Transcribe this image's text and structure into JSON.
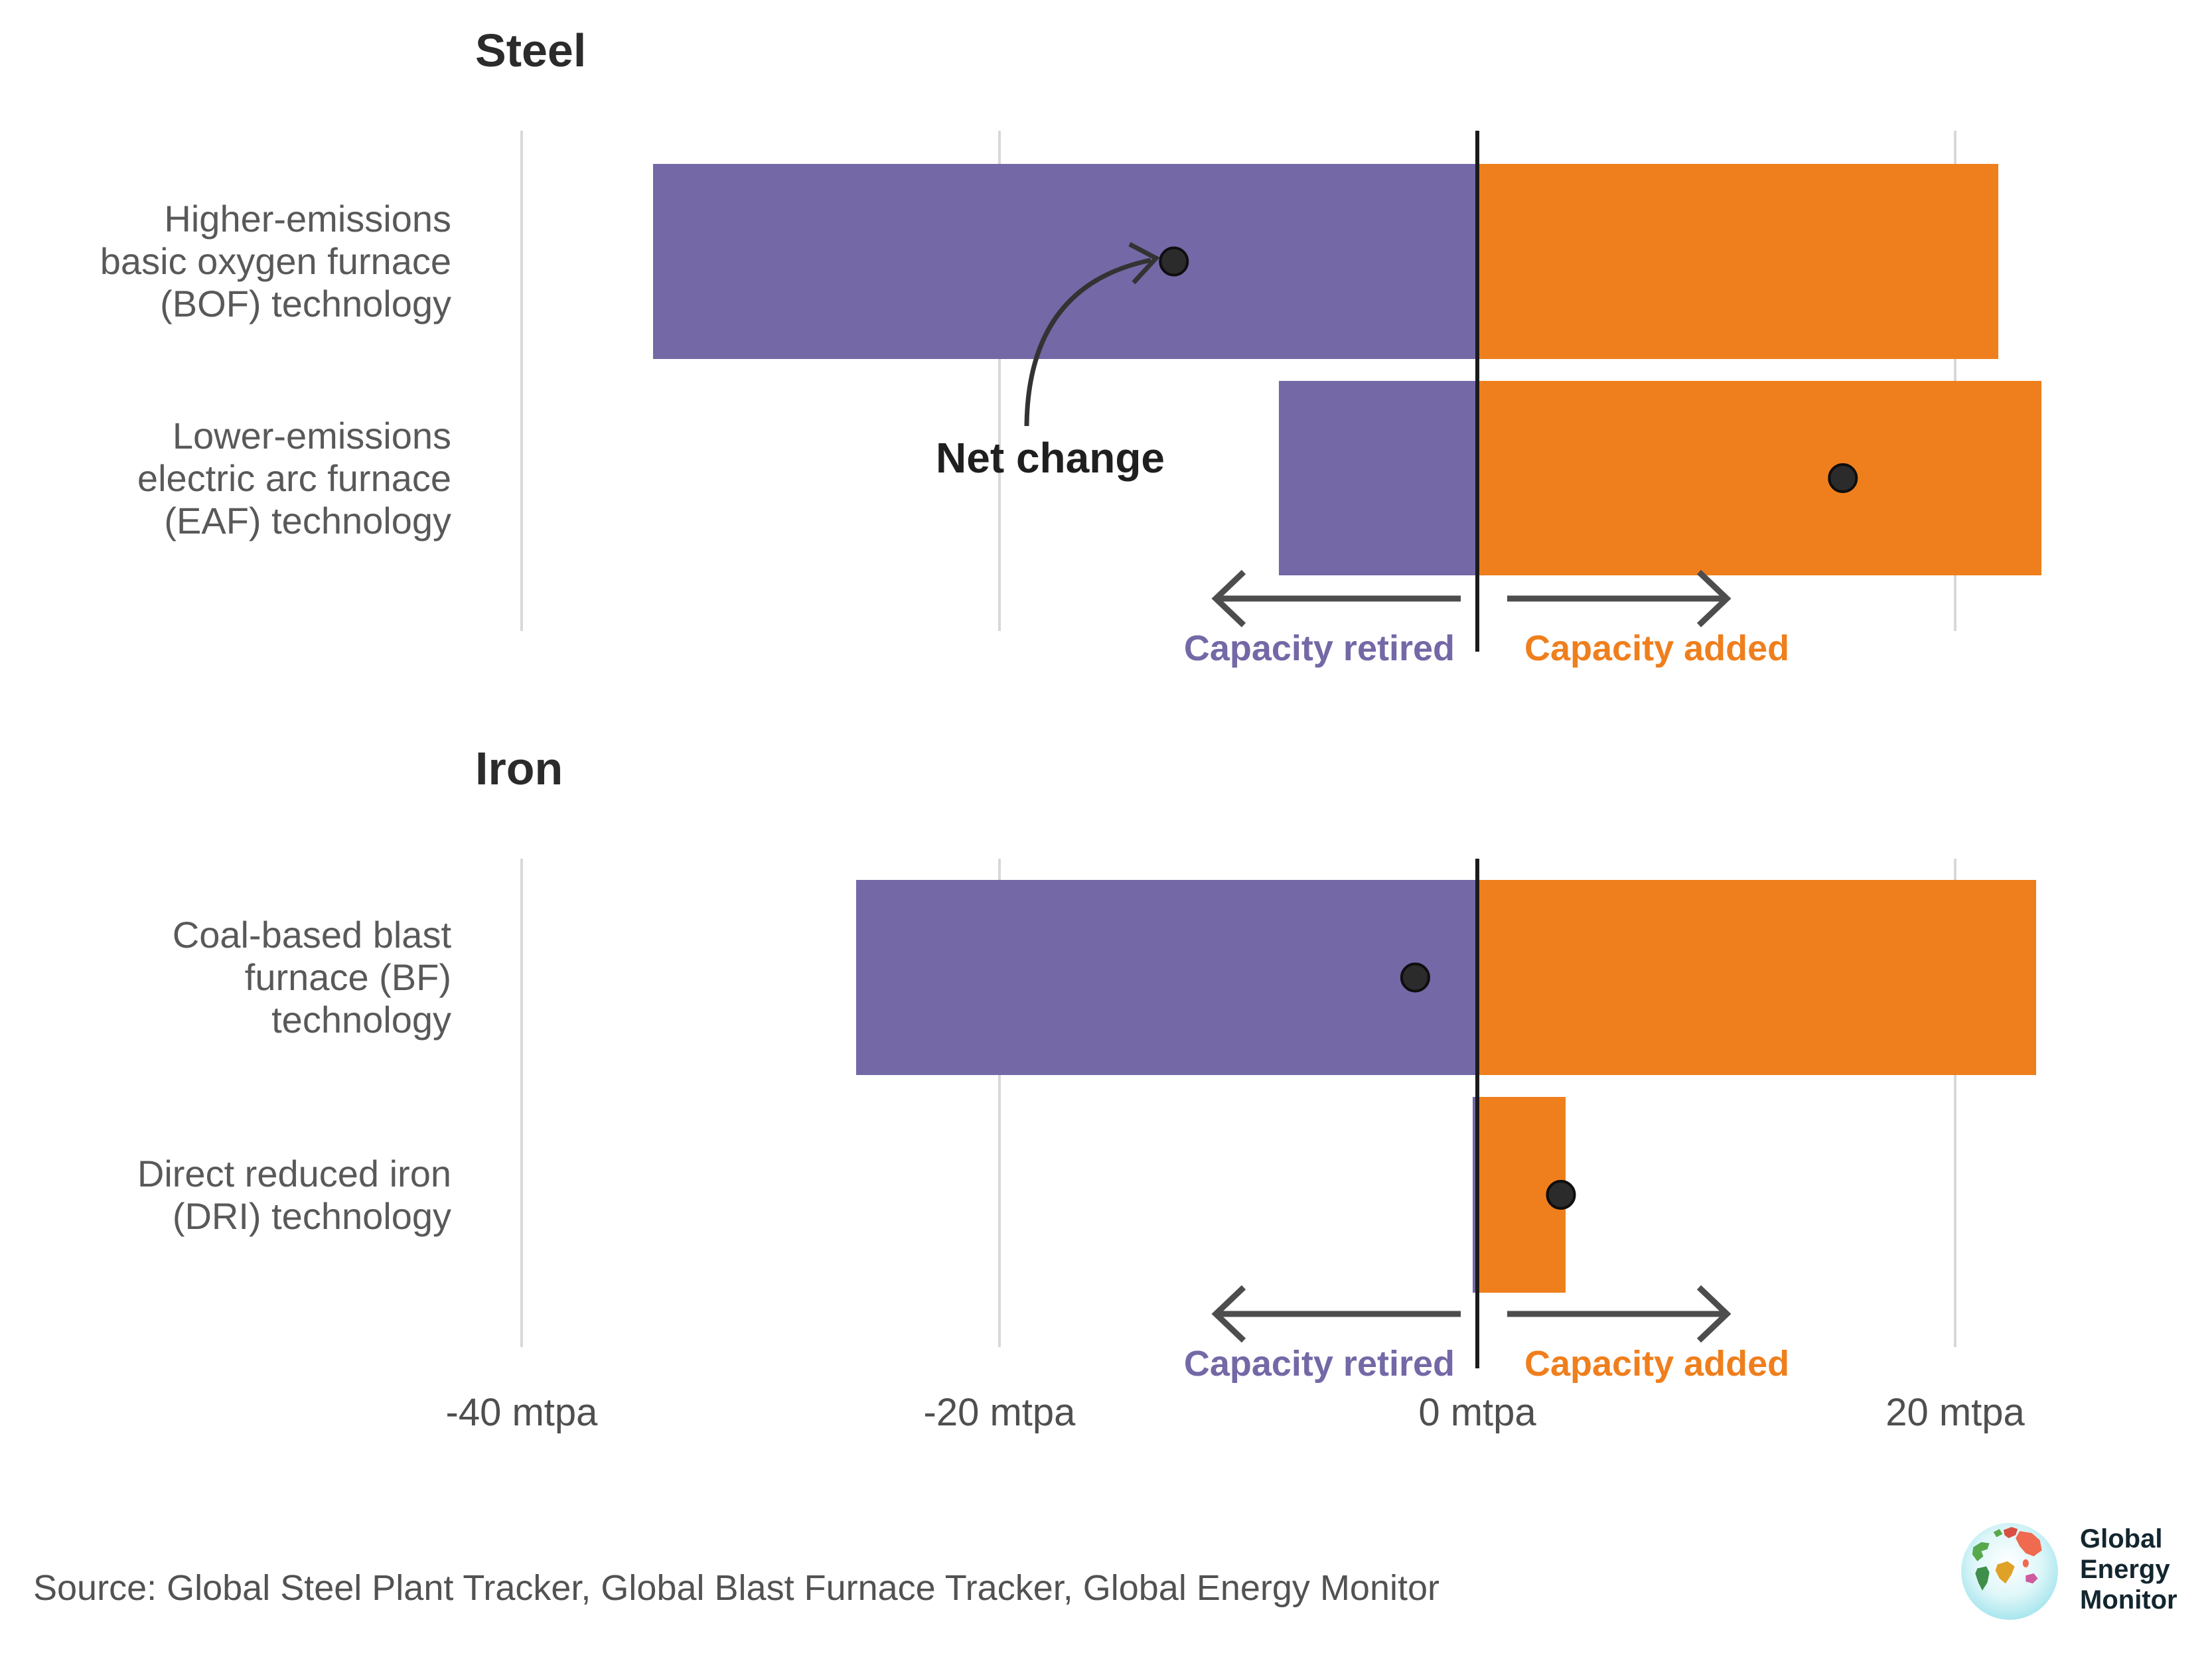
{
  "chart_data": {
    "type": "bar",
    "subtype": "diverging-horizontal-with-net-dot",
    "unit": "mtpa",
    "axis": {
      "ticks": [
        -40,
        -20,
        0,
        20
      ],
      "tick_labels": [
        "-40 mtpa",
        "-20 mtpa",
        "0 mtpa",
        "20 mtpa"
      ],
      "xlim": [
        -44,
        28
      ],
      "grid": true
    },
    "legend": {
      "retired_label": "Capacity retired",
      "added_label": "Capacity added"
    },
    "net_change_label": "Net change",
    "sections": [
      {
        "title": "Steel",
        "rows": [
          {
            "label_lines": [
              "Higher-emissions",
              "basic oxygen furnace",
              "(BOF) technology"
            ],
            "retired": 34.5,
            "added": 21.8,
            "net": -12.7
          },
          {
            "label_lines": [
              "Lower-emissions",
              "electric arc furnace",
              "(EAF) technology"
            ],
            "retired": 8.3,
            "added": 23.6,
            "net": 15.3
          }
        ]
      },
      {
        "title": "Iron",
        "rows": [
          {
            "label_lines": [
              "Coal-based blast",
              "furnace (BF)",
              "technology"
            ],
            "retired": 26.0,
            "added": 23.4,
            "net": -2.6
          },
          {
            "label_lines": [
              "Direct reduced iron",
              "(DRI) technology"
            ],
            "retired": 0.2,
            "added": 3.7,
            "net": 3.5
          }
        ]
      }
    ],
    "colors": {
      "retired": "#7468A6",
      "added": "#EF7F1D",
      "dot": "#2b2b2b",
      "grid": "#d8d8d8",
      "zero_line": "#1b1b1b",
      "arrow": "#4d4d4d",
      "retired_text": "#7468A6",
      "added_text": "#EF7F1D"
    }
  },
  "source": {
    "text": "Source: Global Steel Plant Tracker, Global Blast Furnace Tracker, Global Energy Monitor"
  },
  "logo": {
    "lines": [
      "Global",
      "Energy",
      "Monitor"
    ]
  }
}
